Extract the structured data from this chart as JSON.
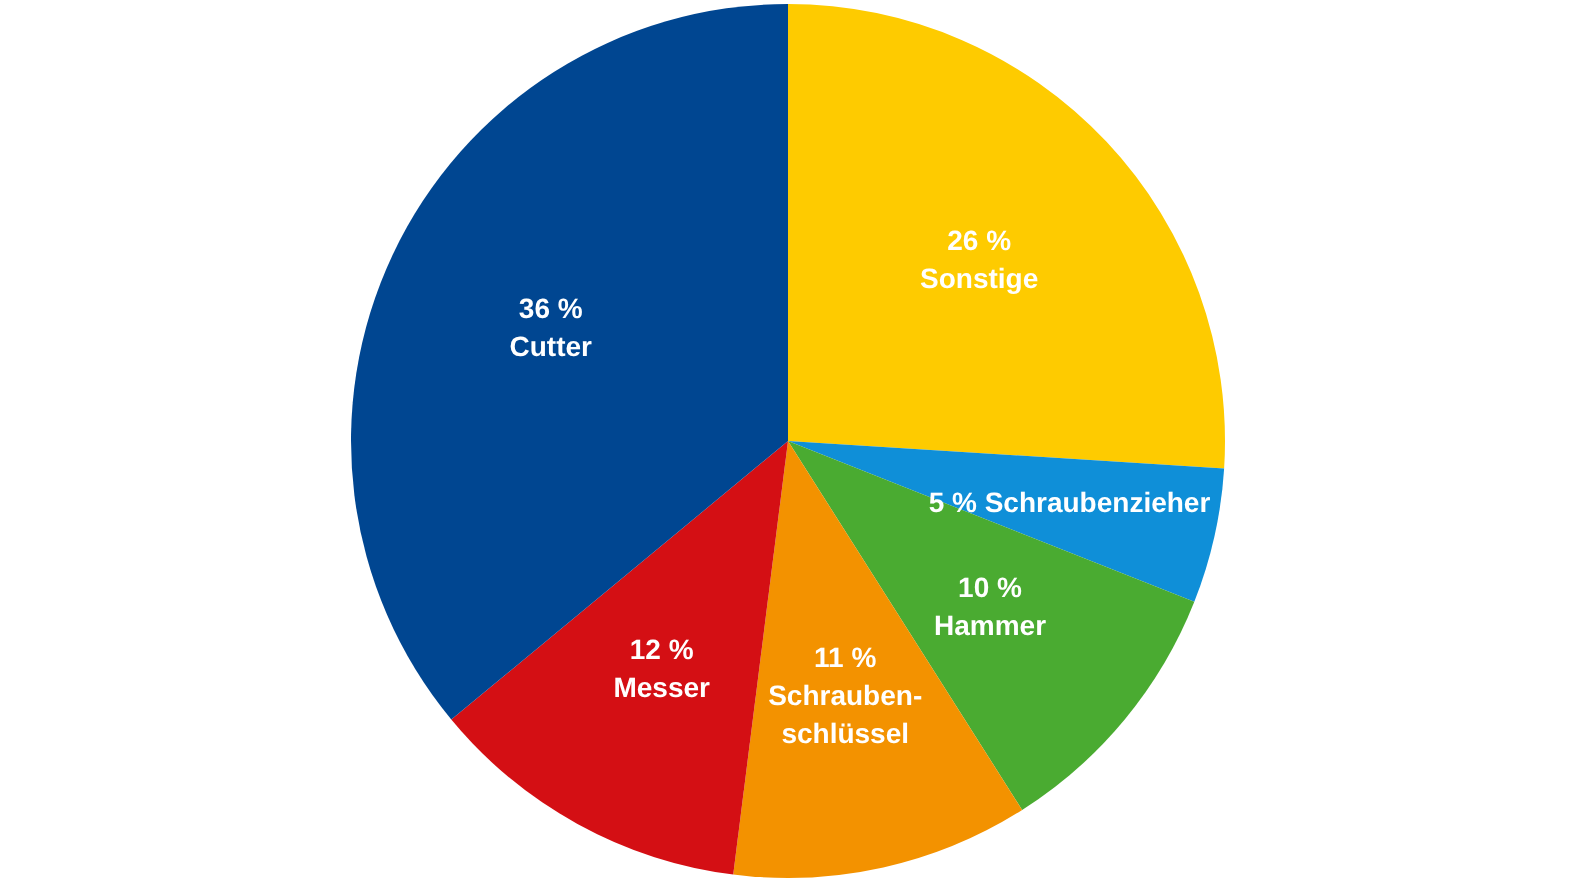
{
  "chart_data": {
    "type": "pie",
    "categories": [
      "Sonstige",
      "Schraubenzieher",
      "Hammer",
      "Schrauben-schlüssel",
      "Messer",
      "Cutter"
    ],
    "values": [
      26,
      5,
      10,
      11,
      12,
      36
    ],
    "colors": [
      "#fecb00",
      "#0f8fd8",
      "#4aab31",
      "#f39200",
      "#d40f14",
      "#004691"
    ],
    "value_labels": [
      "26 %",
      "5 %",
      "10 %",
      "11 %",
      "12 %",
      "36 %"
    ],
    "legend": false
  }
}
